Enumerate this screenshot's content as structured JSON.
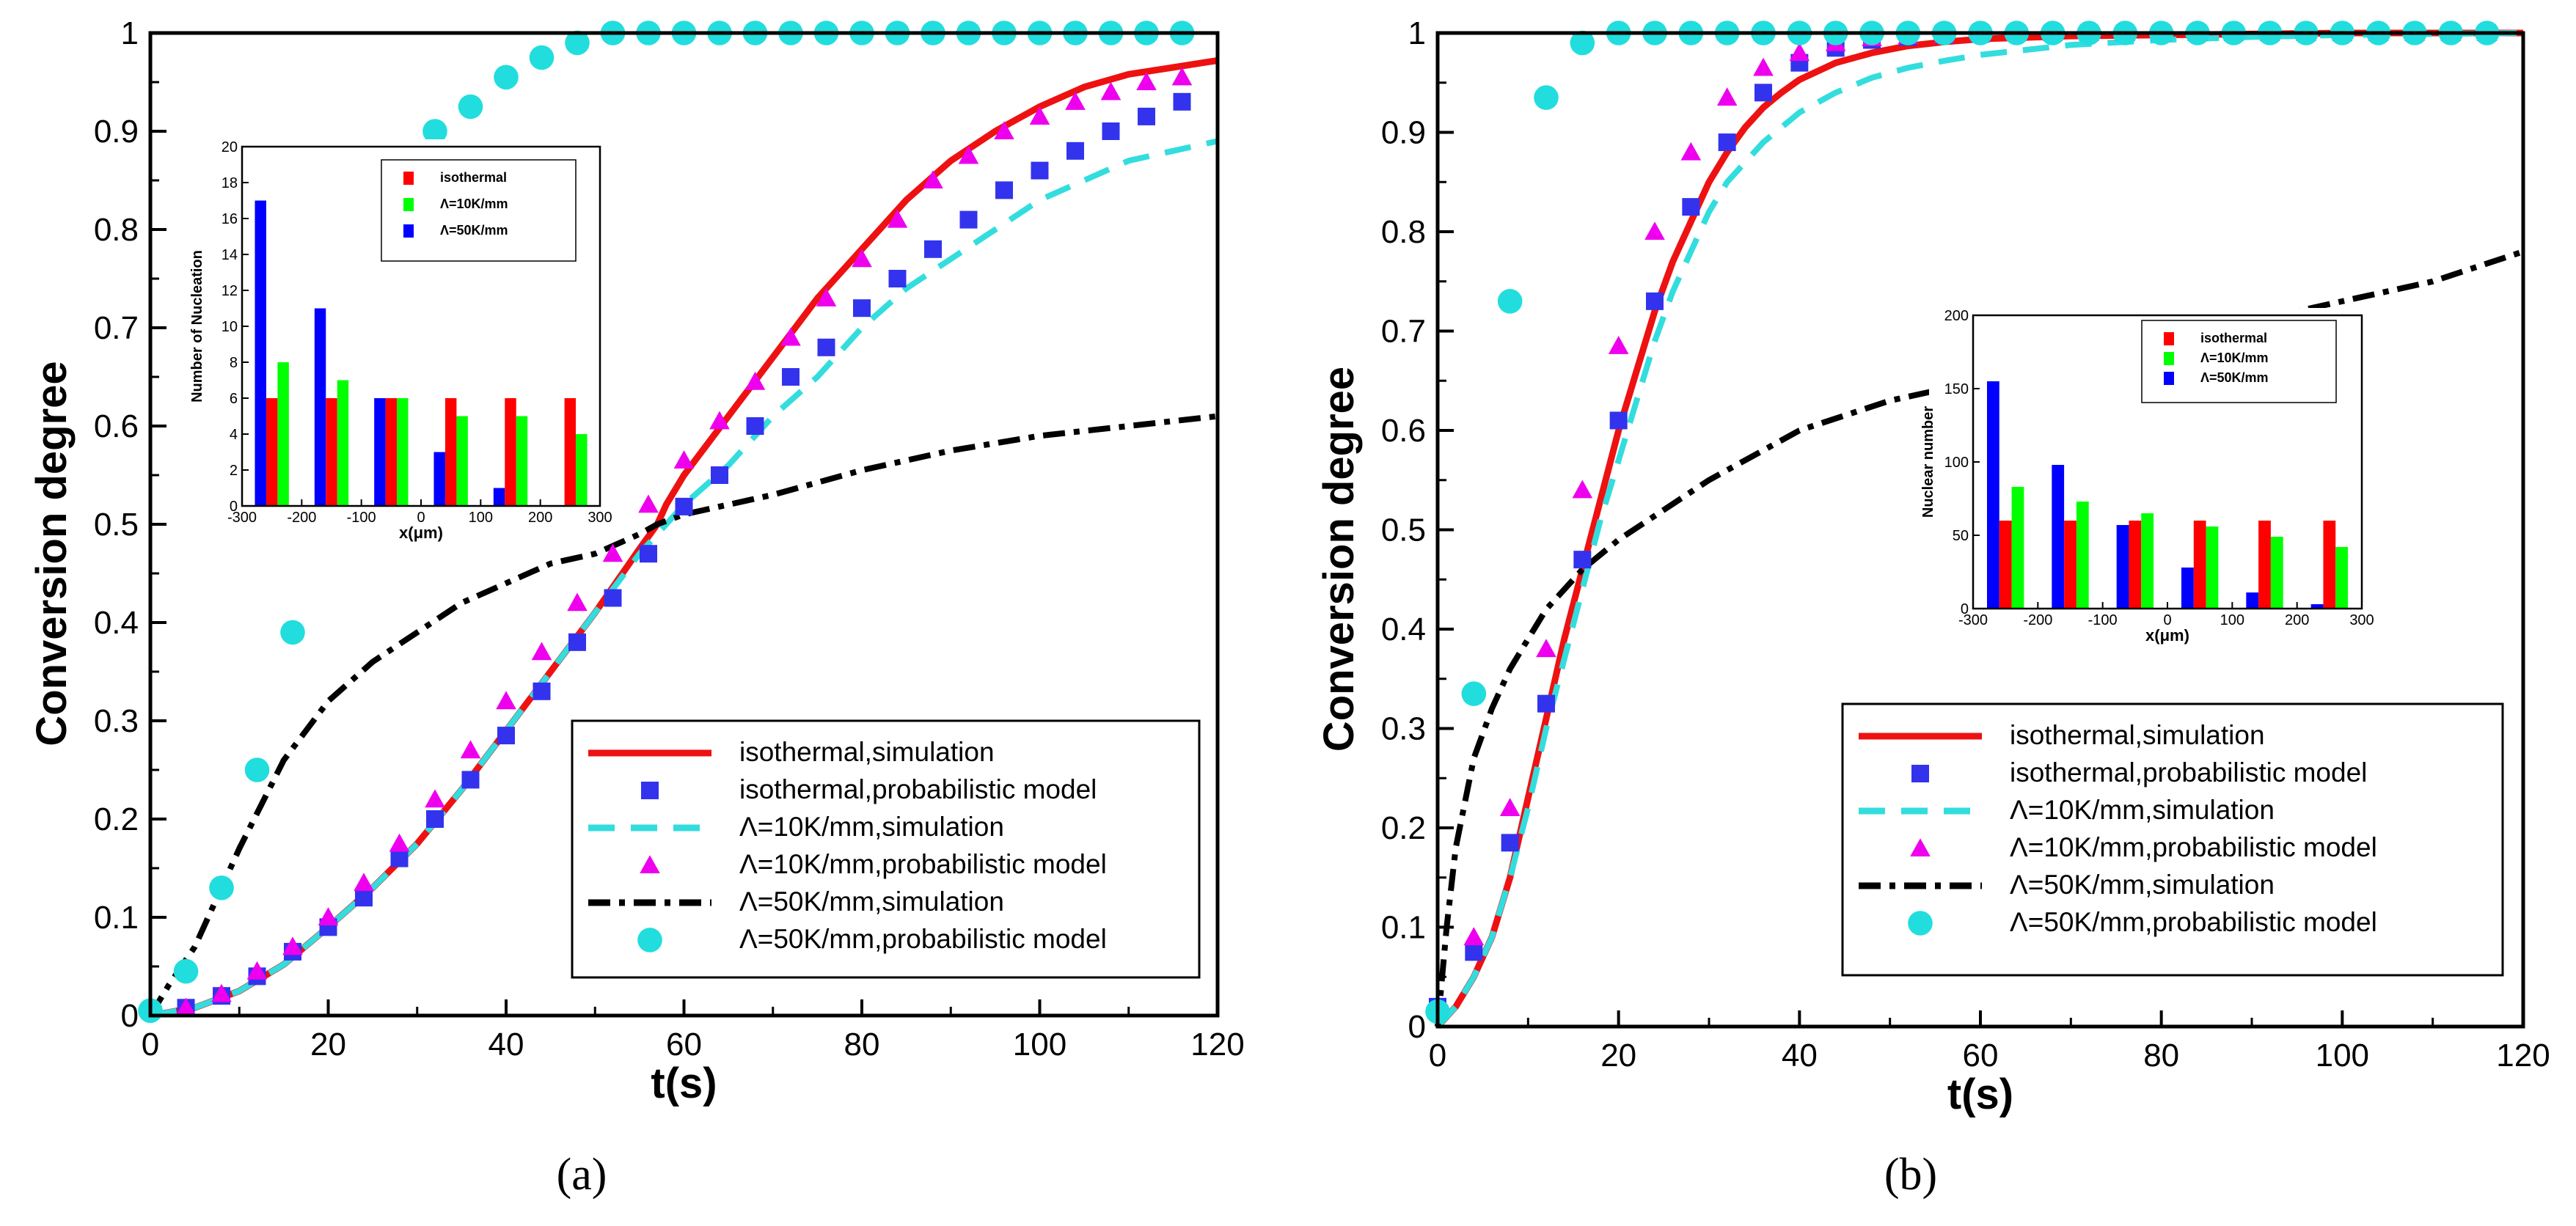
{
  "figure": {
    "captions": [
      "(a)",
      "(b)"
    ]
  },
  "colors": {
    "isothermal": "#ff0000",
    "lambda10": "#00ff00",
    "lambda50": "#0000ff",
    "sim_iso": "#ee1111",
    "sim_10": "#33dddd",
    "sim_50": "#000000",
    "model_iso": "#3333ee",
    "model_10": "#ee00ee",
    "model_50": "#22dddd"
  },
  "chart_data": [
    {
      "id": "a",
      "type": "scatter",
      "title": "",
      "xlabel": "t(s)",
      "ylabel": "Conversion degree",
      "xlim": [
        0,
        120
      ],
      "ylim": [
        0,
        1
      ],
      "xticks": [
        "0",
        "20",
        "40",
        "60",
        "80",
        "100",
        "120"
      ],
      "yticks": [
        "0",
        "0.1",
        "0.2",
        "0.3",
        "0.4",
        "0.5",
        "0.6",
        "0.7",
        "0.8",
        "0.9",
        "1"
      ],
      "legend_position": "bottom-right",
      "series": [
        {
          "name": "isothermal,simulation",
          "kind": "line",
          "color": "#ee1111",
          "dash": "solid",
          "x": [
            0,
            5,
            10,
            15,
            20,
            25,
            30,
            35,
            40,
            45,
            50,
            55,
            57,
            58,
            60,
            65,
            70,
            75,
            80,
            85,
            90,
            95,
            100,
            105,
            110,
            115,
            120
          ],
          "y": [
            0,
            0.008,
            0.025,
            0.052,
            0.09,
            0.13,
            0.175,
            0.23,
            0.29,
            0.35,
            0.41,
            0.475,
            0.5,
            0.52,
            0.55,
            0.61,
            0.67,
            0.73,
            0.78,
            0.83,
            0.87,
            0.9,
            0.925,
            0.945,
            0.958,
            0.965,
            0.972
          ]
        },
        {
          "name": "isothermal,probabilistic model",
          "kind": "marker",
          "marker": "square",
          "color": "#3333ee",
          "x": [
            4,
            8,
            12,
            16,
            20,
            24,
            28,
            32,
            36,
            40,
            44,
            48,
            52,
            56,
            60,
            64,
            68,
            72,
            76,
            80,
            84,
            88,
            92,
            96,
            100,
            104,
            108,
            112,
            116
          ],
          "y": [
            0.008,
            0.02,
            0.04,
            0.065,
            0.09,
            0.12,
            0.16,
            0.2,
            0.24,
            0.285,
            0.33,
            0.38,
            0.425,
            0.47,
            0.518,
            0.55,
            0.6,
            0.65,
            0.68,
            0.72,
            0.75,
            0.78,
            0.81,
            0.84,
            0.86,
            0.88,
            0.9,
            0.915,
            0.93
          ]
        },
        {
          "name": "Λ=10K/mm,simulation",
          "kind": "line",
          "color": "#33dddd",
          "dash": "dashed",
          "x": [
            0,
            5,
            10,
            15,
            20,
            25,
            30,
            35,
            40,
            45,
            50,
            55,
            58,
            60,
            65,
            70,
            75,
            80,
            85,
            90,
            95,
            100,
            105,
            110,
            115,
            120
          ],
          "y": [
            0,
            0.008,
            0.025,
            0.052,
            0.09,
            0.13,
            0.175,
            0.23,
            0.29,
            0.35,
            0.41,
            0.47,
            0.5,
            0.52,
            0.56,
            0.61,
            0.65,
            0.7,
            0.74,
            0.77,
            0.8,
            0.83,
            0.85,
            0.87,
            0.88,
            0.89
          ]
        },
        {
          "name": "Λ=10K/mm,probabilistic model",
          "kind": "marker",
          "marker": "triangle",
          "color": "#ee00ee",
          "x": [
            4,
            8,
            12,
            16,
            20,
            24,
            28,
            32,
            36,
            40,
            44,
            48,
            52,
            56,
            60,
            64,
            68,
            72,
            76,
            80,
            84,
            88,
            92,
            96,
            100,
            104,
            108,
            112,
            116
          ],
          "y": [
            0.008,
            0.022,
            0.045,
            0.07,
            0.1,
            0.135,
            0.175,
            0.22,
            0.27,
            0.32,
            0.37,
            0.42,
            0.47,
            0.52,
            0.565,
            0.605,
            0.645,
            0.69,
            0.73,
            0.77,
            0.81,
            0.85,
            0.875,
            0.9,
            0.915,
            0.93,
            0.94,
            0.95,
            0.955
          ]
        },
        {
          "name": "Λ=50K/mm,simulation",
          "kind": "line",
          "color": "#000000",
          "dash": "dashdot",
          "x": [
            0,
            2,
            5,
            8,
            10,
            15,
            20,
            25,
            30,
            35,
            40,
            45,
            50,
            55,
            57,
            60,
            70,
            80,
            90,
            100,
            110,
            120
          ],
          "y": [
            0,
            0.03,
            0.07,
            0.13,
            0.17,
            0.26,
            0.32,
            0.36,
            0.39,
            0.42,
            0.44,
            0.46,
            0.47,
            0.49,
            0.5,
            0.51,
            0.53,
            0.555,
            0.575,
            0.59,
            0.6,
            0.61
          ]
        },
        {
          "name": "Λ=50K/mm,probabilistic model",
          "kind": "marker",
          "marker": "circle",
          "color": "#22dddd",
          "x": [
            0,
            4,
            8,
            12,
            16,
            20,
            24,
            28,
            32,
            36,
            40,
            44,
            48,
            52,
            56,
            60,
            64,
            68,
            72,
            76,
            80,
            84,
            88,
            92,
            96,
            100,
            104,
            108,
            112,
            116
          ],
          "y": [
            0.005,
            0.045,
            0.13,
            0.25,
            0.39,
            0.62,
            0.76,
            0.84,
            0.9,
            0.925,
            0.955,
            0.975,
            0.99,
            1,
            1,
            1,
            1,
            1,
            1,
            1,
            1,
            1,
            1,
            1,
            1,
            1,
            1,
            1,
            1,
            1
          ]
        }
      ],
      "inset": {
        "type": "bar",
        "xlabel": "x(μm)",
        "ylabel": "Number of Nucleation",
        "xlim": [
          -300,
          300
        ],
        "ylim": [
          0,
          20
        ],
        "xticks": [
          "-300",
          "-200",
          "-100",
          "0",
          "100",
          "200",
          "300"
        ],
        "yticks": [
          "0",
          "2",
          "4",
          "6",
          "8",
          "10",
          "12",
          "14",
          "16",
          "18",
          "20"
        ],
        "categories": [
          -250,
          -150,
          -50,
          50,
          150,
          250
        ],
        "legend_position": "top-right",
        "series": [
          {
            "name": "isothermal",
            "color": "#ff0000",
            "values": [
              6,
              6,
              6,
              6,
              6,
              6
            ]
          },
          {
            "name": "Λ=10K/mm",
            "color": "#00ff00",
            "values": [
              8,
              7,
              6,
              5,
              5,
              4
            ]
          },
          {
            "name": "Λ=50K/mm",
            "color": "#0000ff",
            "values": [
              17,
              11,
              6,
              3,
              1,
              0
            ]
          }
        ]
      }
    },
    {
      "id": "b",
      "type": "scatter",
      "title": "",
      "xlabel": "t(s)",
      "ylabel": "Conversion degree",
      "xlim": [
        0,
        120
      ],
      "ylim": [
        0,
        1
      ],
      "xticks": [
        "0",
        "20",
        "40",
        "60",
        "80",
        "100",
        "120"
      ],
      "yticks": [
        "0",
        "0.1",
        "0.2",
        "0.3",
        "0.4",
        "0.5",
        "0.6",
        "0.7",
        "0.8",
        "0.9",
        "1"
      ],
      "legend_position": "bottom-right",
      "series": [
        {
          "name": "isothermal,simulation",
          "kind": "line",
          "color": "#ee1111",
          "dash": "solid",
          "x": [
            0,
            2,
            4,
            6,
            8,
            10,
            12,
            14,
            16,
            18,
            20,
            22,
            24,
            26,
            28,
            30,
            32,
            34,
            36,
            38,
            40,
            44,
            48,
            52,
            56,
            60,
            70,
            80,
            90,
            100,
            110,
            120
          ],
          "y": [
            0,
            0.02,
            0.05,
            0.09,
            0.15,
            0.23,
            0.31,
            0.39,
            0.46,
            0.53,
            0.6,
            0.66,
            0.72,
            0.77,
            0.81,
            0.85,
            0.88,
            0.905,
            0.925,
            0.94,
            0.953,
            0.97,
            0.98,
            0.987,
            0.991,
            0.994,
            0.997,
            0.998,
            0.999,
            1,
            1,
            1
          ]
        },
        {
          "name": "isothermal,probabilistic model",
          "kind": "marker",
          "marker": "square",
          "color": "#3333ee",
          "x": [
            0,
            4,
            8,
            12,
            16,
            20,
            24,
            28,
            32,
            36,
            40,
            44,
            48,
            52,
            56,
            60,
            64,
            68,
            72,
            76,
            80,
            84,
            88,
            92,
            96,
            100,
            104,
            108,
            112,
            116
          ],
          "y": [
            0.02,
            0.075,
            0.185,
            0.325,
            0.47,
            0.61,
            0.73,
            0.825,
            0.89,
            0.94,
            0.97,
            0.985,
            0.993,
            0.996,
            0.998,
            0.999,
            1,
            1,
            1,
            1,
            1,
            1,
            1,
            1,
            1,
            1,
            1,
            1,
            1,
            1
          ]
        },
        {
          "name": "Λ=10K/mm,simulation",
          "kind": "line",
          "color": "#33dddd",
          "dash": "dashed",
          "x": [
            0,
            2,
            4,
            6,
            8,
            10,
            12,
            14,
            16,
            18,
            20,
            22,
            24,
            26,
            28,
            30,
            32,
            34,
            36,
            38,
            40,
            44,
            48,
            52,
            56,
            60,
            70,
            80,
            90,
            100,
            110,
            120
          ],
          "y": [
            0,
            0.02,
            0.05,
            0.09,
            0.15,
            0.22,
            0.3,
            0.37,
            0.44,
            0.51,
            0.57,
            0.63,
            0.69,
            0.74,
            0.78,
            0.82,
            0.85,
            0.87,
            0.89,
            0.905,
            0.92,
            0.94,
            0.955,
            0.965,
            0.972,
            0.978,
            0.988,
            0.993,
            0.996,
            0.998,
            0.999,
            1
          ]
        },
        {
          "name": "Λ=10K/mm,probabilistic model",
          "kind": "marker",
          "marker": "triangle",
          "color": "#ee00ee",
          "x": [
            0,
            4,
            8,
            12,
            16,
            20,
            24,
            28,
            32,
            36,
            40,
            44,
            48,
            52,
            56,
            60,
            64,
            68,
            72,
            76,
            80,
            84,
            88,
            92,
            96,
            100,
            104,
            108,
            112,
            116
          ],
          "y": [
            0.02,
            0.09,
            0.22,
            0.38,
            0.54,
            0.685,
            0.8,
            0.88,
            0.935,
            0.965,
            0.98,
            0.99,
            0.995,
            0.997,
            0.998,
            0.999,
            1,
            1,
            1,
            1,
            1,
            1,
            1,
            1,
            1,
            1,
            1,
            1,
            1,
            1
          ]
        },
        {
          "name": "Λ=50K/mm,simulation",
          "kind": "line",
          "color": "#000000",
          "dash": "dashdot",
          "x": [
            0,
            1,
            2,
            4,
            6,
            8,
            10,
            12,
            14,
            16,
            18,
            20,
            25,
            30,
            35,
            40,
            50,
            60,
            70,
            80,
            90,
            100,
            110,
            120
          ],
          "y": [
            0,
            0.1,
            0.18,
            0.27,
            0.32,
            0.36,
            0.39,
            0.42,
            0.44,
            0.46,
            0.475,
            0.49,
            0.52,
            0.55,
            0.575,
            0.6,
            0.63,
            0.65,
            0.67,
            0.69,
            0.71,
            0.73,
            0.75,
            0.78
          ]
        },
        {
          "name": "Λ=50K/mm,probabilistic model",
          "kind": "marker",
          "marker": "circle",
          "color": "#22dddd",
          "x": [
            0,
            4,
            8,
            12,
            16,
            20,
            24,
            28,
            32,
            36,
            40,
            44,
            48,
            52,
            56,
            60,
            64,
            68,
            72,
            76,
            80,
            84,
            88,
            92,
            96,
            100,
            104,
            108,
            112,
            116
          ],
          "y": [
            0.015,
            0.335,
            0.73,
            0.935,
            0.99,
            1,
            1,
            1,
            1,
            1,
            1,
            1,
            1,
            1,
            1,
            1,
            1,
            1,
            1,
            1,
            1,
            1,
            1,
            1,
            1,
            1,
            1,
            1,
            1,
            1
          ]
        }
      ],
      "inset": {
        "type": "bar",
        "xlabel": "x(μm)",
        "ylabel": "Nuclear number",
        "xlim": [
          -300,
          300
        ],
        "ylim": [
          0,
          200
        ],
        "xticks": [
          "-300",
          "-200",
          "-100",
          "0",
          "100",
          "200",
          "300"
        ],
        "yticks": [
          "0",
          "50",
          "100",
          "150",
          "200"
        ],
        "categories": [
          -250,
          -150,
          -50,
          50,
          150,
          250
        ],
        "legend_position": "top-right",
        "series": [
          {
            "name": "isothermal",
            "color": "#ff0000",
            "values": [
              60,
              60,
              60,
              60,
              60,
              60
            ]
          },
          {
            "name": "Λ=10K/mm",
            "color": "#00ff00",
            "values": [
              83,
              73,
              65,
              56,
              49,
              42
            ]
          },
          {
            "name": "Λ=50K/mm",
            "color": "#0000ff",
            "values": [
              155,
              98,
              57,
              28,
              11,
              3
            ]
          }
        ]
      }
    }
  ]
}
